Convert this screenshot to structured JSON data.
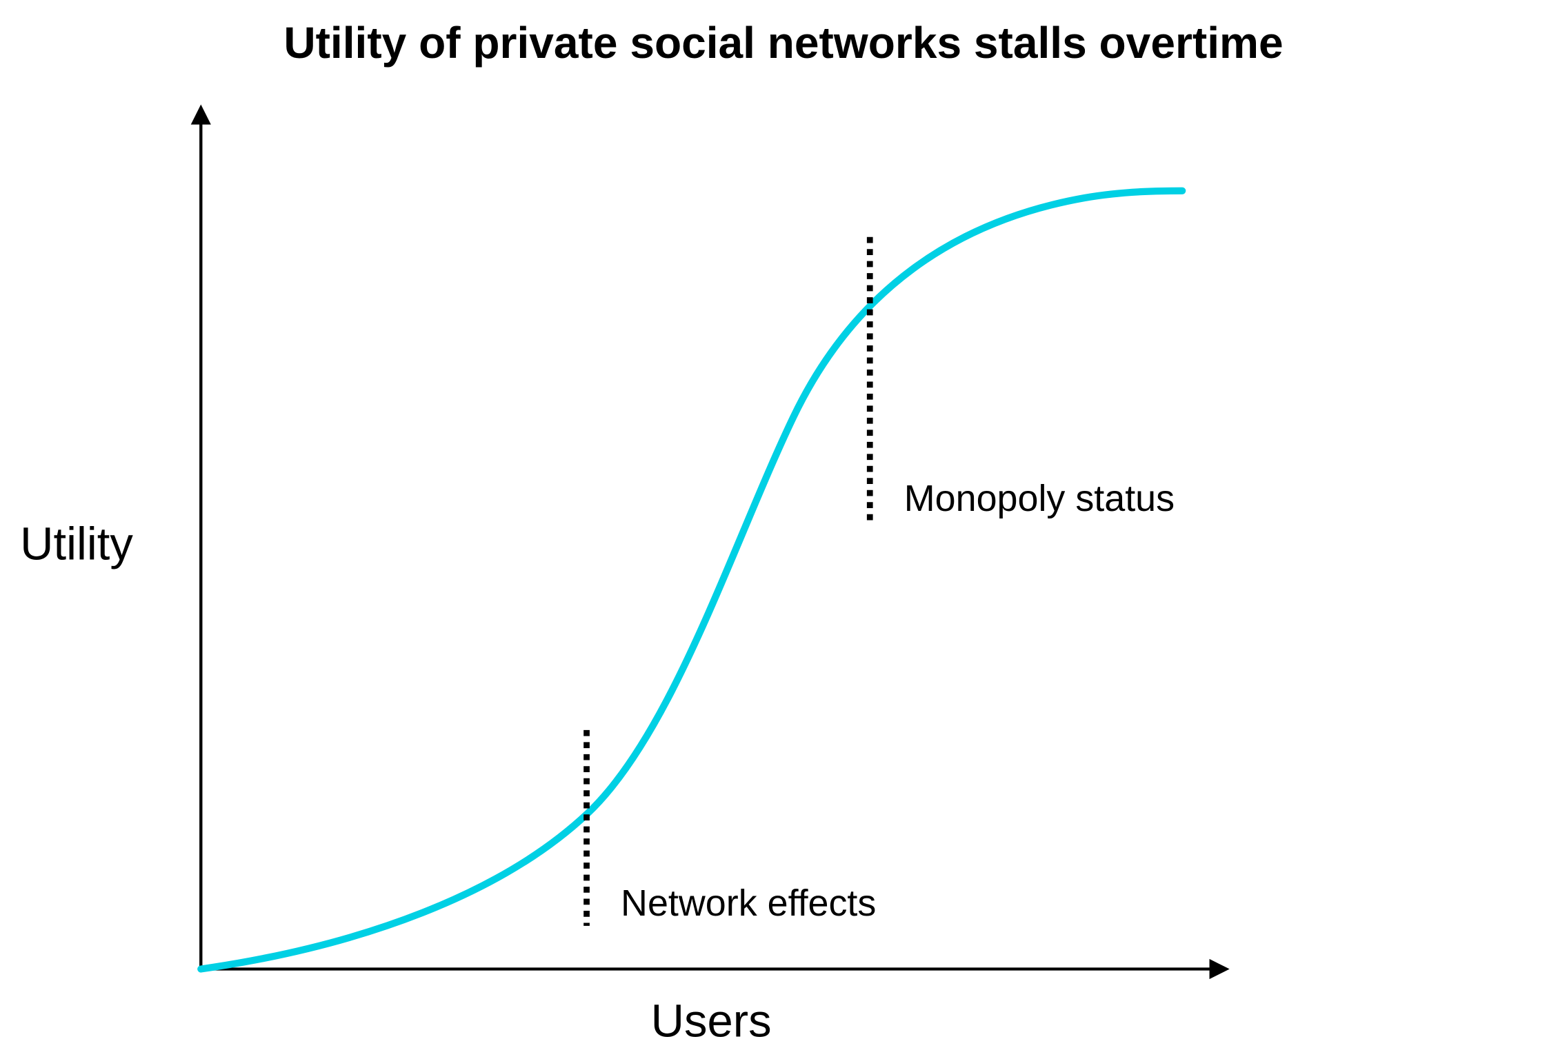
{
  "title": "Utility of private social networks stalls overtime",
  "axes": {
    "y_label": "Utility",
    "x_label": "Users"
  },
  "annotations": [
    "Network effects",
    "Monopoly status"
  ]
}
